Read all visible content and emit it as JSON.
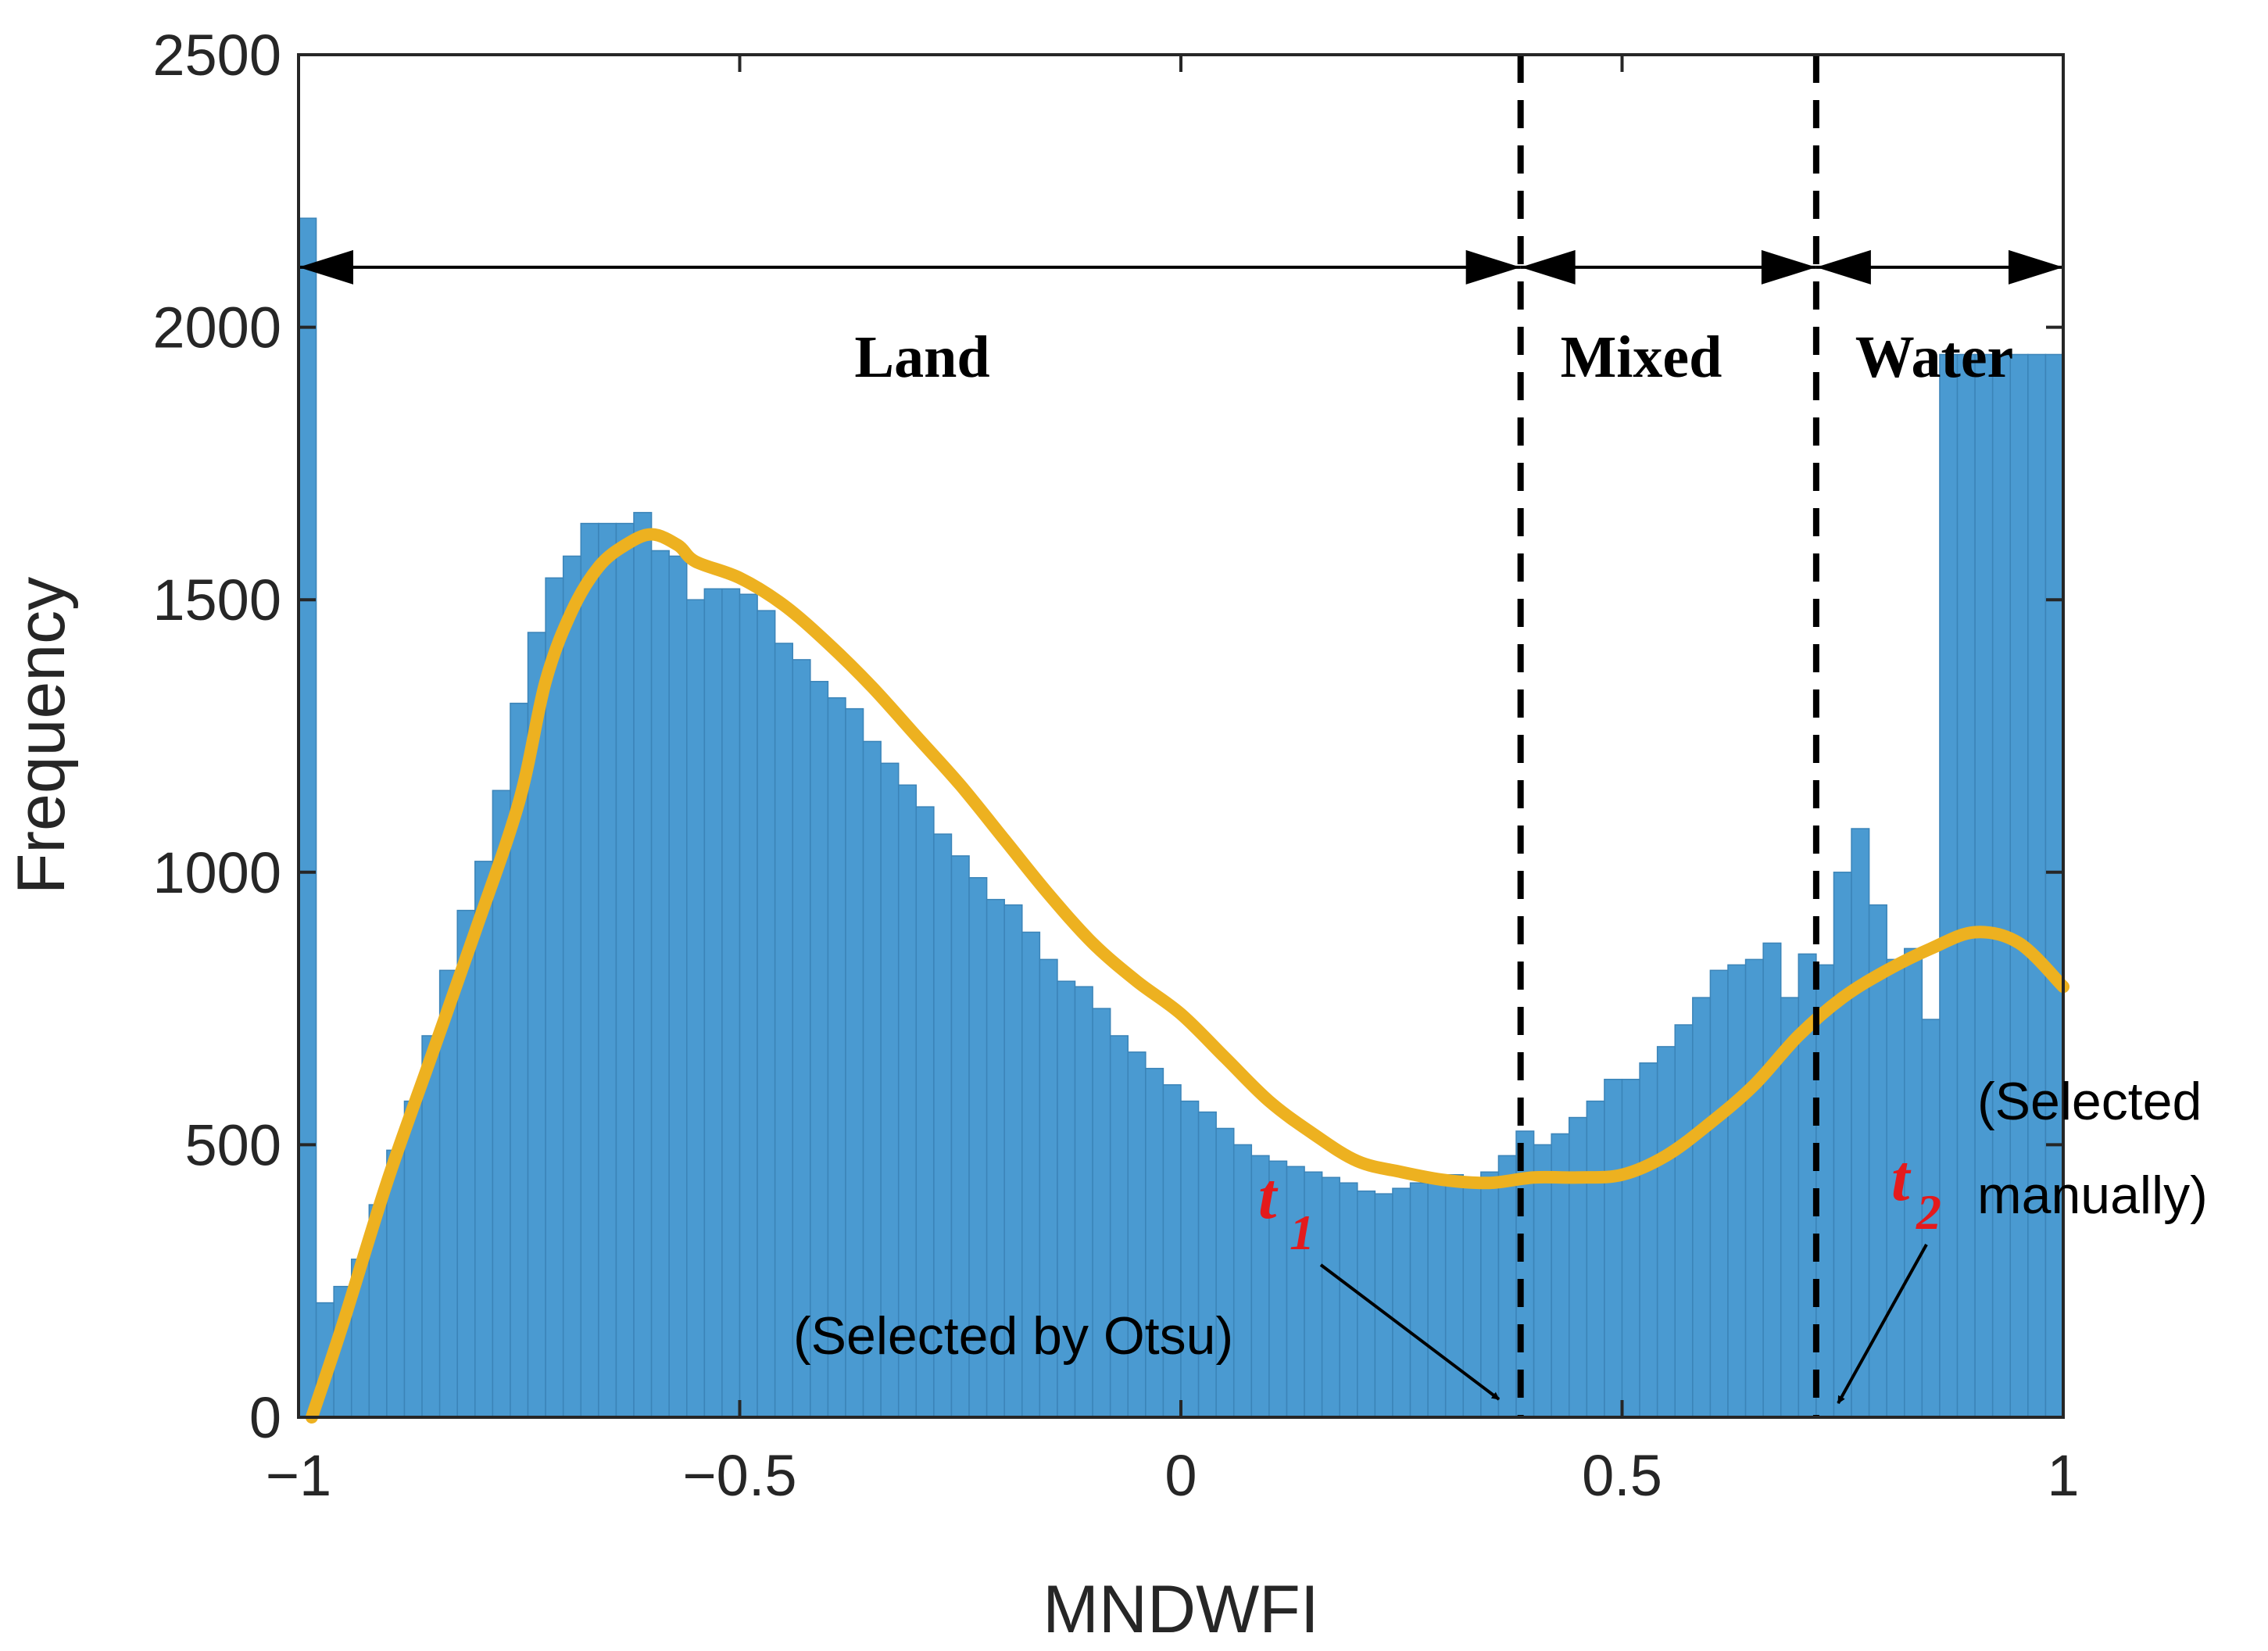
{
  "chart_data": {
    "type": "bar",
    "xlabel": "MNDWFI",
    "ylabel": "Frequency",
    "xlim": [
      -1,
      1
    ],
    "ylim": [
      0,
      2500
    ],
    "xticks": [
      -1,
      -0.5,
      0,
      0.5,
      1
    ],
    "xtick_labels": [
      "−1",
      "−0.5",
      "0",
      "0.5",
      "1"
    ],
    "yticks": [
      0,
      500,
      1000,
      1500,
      2000,
      2500
    ],
    "ytick_labels": [
      "0",
      "500",
      "1000",
      "1500",
      "2000",
      "2500"
    ],
    "bar_color": "#4a9ad1",
    "bin_width": 0.02,
    "bin_centers": [
      -0.99,
      -0.97,
      -0.95,
      -0.93,
      -0.91,
      -0.89,
      -0.87,
      -0.85,
      -0.83,
      -0.81,
      -0.79,
      -0.77,
      -0.75,
      -0.73,
      -0.71,
      -0.69,
      -0.67,
      -0.65,
      -0.63,
      -0.61,
      -0.59,
      -0.57,
      -0.55,
      -0.53,
      -0.51,
      -0.49,
      -0.47,
      -0.45,
      -0.43,
      -0.41,
      -0.39,
      -0.37,
      -0.35,
      -0.33,
      -0.31,
      -0.29,
      -0.27,
      -0.25,
      -0.23,
      -0.21,
      -0.19,
      -0.17,
      -0.15,
      -0.13,
      -0.11,
      -0.09,
      -0.07,
      -0.05,
      -0.03,
      -0.01,
      0.01,
      0.03,
      0.05,
      0.07,
      0.09,
      0.11,
      0.13,
      0.15,
      0.17,
      0.19,
      0.21,
      0.23,
      0.25,
      0.27,
      0.29,
      0.31,
      0.33,
      0.35,
      0.37,
      0.39,
      0.41,
      0.43,
      0.45,
      0.47,
      0.49,
      0.51,
      0.53,
      0.55,
      0.57,
      0.59,
      0.61,
      0.63,
      0.65,
      0.67,
      0.69,
      0.71,
      0.73,
      0.75,
      0.77,
      0.79,
      0.81,
      0.83,
      0.85,
      0.87,
      0.89,
      0.91,
      0.93,
      0.95,
      0.97,
      0.99
    ],
    "values": [
      2200,
      210,
      240,
      290,
      390,
      490,
      580,
      700,
      820,
      930,
      1020,
      1150,
      1310,
      1440,
      1540,
      1580,
      1640,
      1640,
      1640,
      1660,
      1590,
      1580,
      1500,
      1520,
      1520,
      1510,
      1480,
      1420,
      1390,
      1350,
      1320,
      1300,
      1240,
      1200,
      1160,
      1120,
      1070,
      1030,
      990,
      950,
      940,
      890,
      840,
      800,
      790,
      750,
      700,
      670,
      640,
      610,
      580,
      560,
      530,
      500,
      480,
      470,
      460,
      450,
      440,
      430,
      415,
      410,
      420,
      430,
      440,
      445,
      440,
      450,
      480,
      525,
      500,
      520,
      550,
      580,
      620,
      620,
      650,
      680,
      720,
      770,
      820,
      830,
      840,
      870,
      770,
      850,
      830,
      1000,
      1080,
      940,
      840,
      860,
      730,
      1950,
      1950,
      1950,
      1950,
      1950,
      1950,
      1950
    ],
    "series": [
      {
        "name": "Smoothed histogram",
        "color": "#edb120",
        "type": "line",
        "x": [
          -0.985,
          -0.95,
          -0.9,
          -0.85,
          -0.8,
          -0.75,
          -0.72,
          -0.69,
          -0.66,
          -0.63,
          -0.6,
          -0.57,
          -0.55,
          -0.5,
          -0.45,
          -0.4,
          -0.35,
          -0.3,
          -0.25,
          -0.2,
          -0.15,
          -0.1,
          -0.05,
          0,
          0.05,
          0.1,
          0.15,
          0.2,
          0.25,
          0.3,
          0.35,
          0.4,
          0.45,
          0.5,
          0.55,
          0.6,
          0.65,
          0.7,
          0.75,
          0.8,
          0.85,
          0.9,
          0.95,
          1.0
        ],
        "y": [
          0,
          170,
          430,
          660,
          890,
          1130,
          1350,
          1480,
          1560,
          1600,
          1620,
          1600,
          1570,
          1540,
          1490,
          1420,
          1340,
          1250,
          1160,
          1060,
          960,
          870,
          800,
          740,
          660,
          580,
          520,
          470,
          450,
          435,
          430,
          440,
          440,
          445,
          480,
          540,
          610,
          700,
          770,
          820,
          860,
          890,
          870,
          790
        ]
      }
    ],
    "vlines": [
      {
        "x": 0.385,
        "style": "dashed",
        "color": "#000000"
      },
      {
        "x": 0.72,
        "style": "dashed",
        "color": "#000000"
      }
    ],
    "range_arrow_y": 2110,
    "regions": [
      {
        "label": "Land",
        "x_from": -1,
        "x_to": 0.385,
        "label_y": 1950
      },
      {
        "label": "Mixed",
        "x_from": 0.385,
        "x_to": 0.72,
        "label_y": 1950
      },
      {
        "label": "Water",
        "x_from": 0.72,
        "x_to": 1,
        "label_y": 1950
      }
    ],
    "thresholds": [
      {
        "symbol": "t",
        "subscript": "1",
        "note": "(Selected by Otsu)",
        "x": 0.385
      },
      {
        "symbol": "t",
        "subscript": "2",
        "note_lines": [
          "(Selected",
          "manually)"
        ],
        "x": 0.72
      }
    ]
  }
}
